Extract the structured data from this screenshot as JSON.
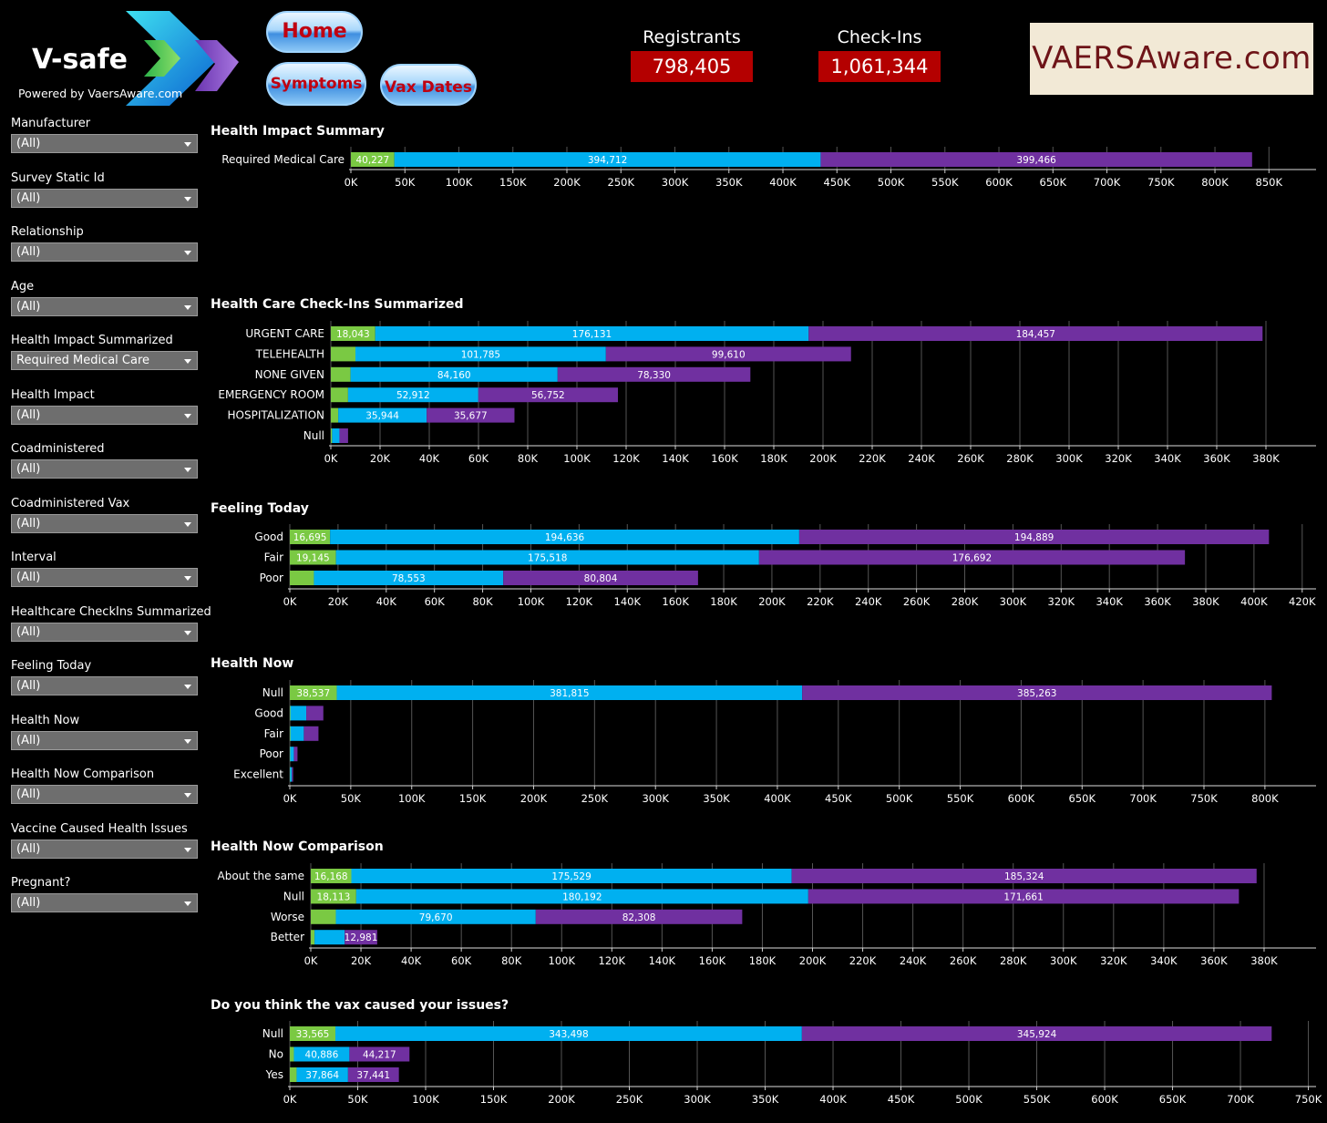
{
  "header": {
    "logo_title": "V-safe",
    "logo_subtitle": "Powered by VaersAware.com",
    "nav": {
      "home": "Home",
      "symptoms": "Symptoms",
      "vax_dates": "Vax Dates"
    },
    "kpis": [
      {
        "label": "Registrants",
        "value": "798,405"
      },
      {
        "label": "Check-Ins",
        "value": "1,061,344"
      }
    ],
    "brand": "VAERSAware.com"
  },
  "filters": [
    {
      "label": "Manufacturer",
      "value": "(All)"
    },
    {
      "label": "Survey Static Id",
      "value": "(All)"
    },
    {
      "label": "Relationship",
      "value": "(All)"
    },
    {
      "label": "Age",
      "value": "(All)"
    },
    {
      "label": "Health Impact Summarized",
      "value": "Required Medical Care"
    },
    {
      "label": "Health Impact",
      "value": "(All)"
    },
    {
      "label": "Coadministered",
      "value": "(All)"
    },
    {
      "label": "Coadministered Vax",
      "value": "(All)"
    },
    {
      "label": "Interval",
      "value": "(All)"
    },
    {
      "label": "Healthcare CheckIns Summarized",
      "value": "(All)"
    },
    {
      "label": "Feeling Today",
      "value": "(All)"
    },
    {
      "label": "Health Now",
      "value": "(All)"
    },
    {
      "label": "Health Now Comparison",
      "value": "(All)"
    },
    {
      "label": "Vaccine Caused Health Issues",
      "value": "(All)"
    },
    {
      "label": "Pregnant?",
      "value": "(All)"
    }
  ],
  "colors": {
    "green": "#7ac943",
    "blue": "#00b0f0",
    "purple": "#7030a0"
  },
  "chart_data": [
    {
      "type": "bar",
      "title": "Health Impact Summary",
      "categories": [
        "Required Medical Care"
      ],
      "series": [
        {
          "values": [
            40227
          ],
          "labels": [
            "40,227"
          ]
        },
        {
          "values": [
            394712
          ],
          "labels": [
            "394,712"
          ]
        },
        {
          "values": [
            399466
          ],
          "labels": [
            "399,466"
          ]
        }
      ],
      "xlim": [
        0,
        870000
      ],
      "ticks": [
        0,
        50000,
        100000,
        150000,
        200000,
        250000,
        300000,
        350000,
        400000,
        450000,
        500000,
        550000,
        600000,
        650000,
        700000,
        750000,
        800000,
        850000
      ],
      "tick_labels": [
        "0K",
        "50K",
        "100K",
        "150K",
        "200K",
        "250K",
        "300K",
        "350K",
        "400K",
        "450K",
        "500K",
        "550K",
        "600K",
        "650K",
        "700K",
        "750K",
        "800K",
        "850K"
      ]
    },
    {
      "type": "bar",
      "title": "Health Care Check-Ins Summarized",
      "categories": [
        "URGENT CARE",
        "TELEHEALTH",
        "NONE GIVEN",
        "EMERGENCY ROOM",
        "HOSPITALIZATION",
        "Null"
      ],
      "series": [
        {
          "values": [
            18043,
            10000,
            8000,
            7000,
            3000,
            500
          ],
          "labels": [
            "18,043",
            "",
            "",
            "",
            "",
            ""
          ]
        },
        {
          "values": [
            176131,
            101785,
            84160,
            52912,
            35944,
            3000
          ],
          "labels": [
            "176,131",
            "101,785",
            "84,160",
            "52,912",
            "35,944",
            ""
          ]
        },
        {
          "values": [
            184457,
            99610,
            78330,
            56752,
            35677,
            3500
          ],
          "labels": [
            "184,457",
            "99,610",
            "78,330",
            "56,752",
            "35,677",
            ""
          ]
        }
      ],
      "xlim": [
        0,
        390000
      ],
      "ticks": [
        0,
        20000,
        40000,
        60000,
        80000,
        100000,
        120000,
        140000,
        160000,
        180000,
        200000,
        220000,
        240000,
        260000,
        280000,
        300000,
        320000,
        340000,
        360000,
        380000
      ],
      "tick_labels": [
        "0K",
        "20K",
        "40K",
        "60K",
        "80K",
        "100K",
        "120K",
        "140K",
        "160K",
        "180K",
        "200K",
        "220K",
        "240K",
        "260K",
        "280K",
        "300K",
        "320K",
        "340K",
        "360K",
        "380K"
      ]
    },
    {
      "type": "bar",
      "title": "Feeling Today",
      "categories": [
        "Good",
        "Fair",
        "Poor"
      ],
      "series": [
        {
          "values": [
            16695,
            19145,
            10000
          ],
          "labels": [
            "16,695",
            "19,145",
            ""
          ]
        },
        {
          "values": [
            194636,
            175518,
            78553
          ],
          "labels": [
            "194,636",
            "175,518",
            "78,553"
          ]
        },
        {
          "values": [
            194889,
            176692,
            80804
          ],
          "labels": [
            "194,889",
            "176,692",
            "80,804"
          ]
        }
      ],
      "xlim": [
        0,
        425000
      ],
      "ticks": [
        0,
        20000,
        40000,
        60000,
        80000,
        100000,
        120000,
        140000,
        160000,
        180000,
        200000,
        220000,
        240000,
        260000,
        280000,
        300000,
        320000,
        340000,
        360000,
        380000,
        400000,
        420000
      ],
      "tick_labels": [
        "0K",
        "20K",
        "40K",
        "60K",
        "80K",
        "100K",
        "120K",
        "140K",
        "160K",
        "180K",
        "200K",
        "220K",
        "240K",
        "260K",
        "280K",
        "300K",
        "320K",
        "340K",
        "360K",
        "380K",
        "400K",
        "420K"
      ]
    },
    {
      "type": "bar",
      "title": "Health Now",
      "categories": [
        "Null",
        "Good",
        "Fair",
        "Poor",
        "Excellent"
      ],
      "series": [
        {
          "values": [
            38537,
            500,
            500,
            300,
            200
          ],
          "labels": [
            "38,537",
            "",
            "",
            "",
            ""
          ]
        },
        {
          "values": [
            381815,
            13000,
            11000,
            3000,
            1500
          ],
          "labels": [
            "381,815",
            "",
            "",
            "",
            ""
          ]
        },
        {
          "values": [
            385263,
            14000,
            12000,
            3000,
            1000
          ],
          "labels": [
            "385,263",
            "",
            "",
            "",
            ""
          ]
        }
      ],
      "xlim": [
        0,
        830000
      ],
      "ticks": [
        0,
        50000,
        100000,
        150000,
        200000,
        250000,
        300000,
        350000,
        400000,
        450000,
        500000,
        550000,
        600000,
        650000,
        700000,
        750000,
        800000
      ],
      "tick_labels": [
        "0K",
        "50K",
        "100K",
        "150K",
        "200K",
        "250K",
        "300K",
        "350K",
        "400K",
        "450K",
        "500K",
        "550K",
        "600K",
        "650K",
        "700K",
        "750K",
        "800K"
      ]
    },
    {
      "type": "bar",
      "title": "Health Now Comparison",
      "categories": [
        "About the same",
        "Null",
        "Worse",
        "Better"
      ],
      "series": [
        {
          "values": [
            16168,
            18113,
            10000,
            1500
          ],
          "labels": [
            "16,168",
            "18,113",
            "",
            ""
          ]
        },
        {
          "values": [
            175529,
            180192,
            79670,
            12000
          ],
          "labels": [
            "175,529",
            "180,192",
            "79,670",
            ""
          ]
        },
        {
          "values": [
            185324,
            171661,
            82308,
            12981
          ],
          "labels": [
            "185,324",
            "171,661",
            "82,308",
            "12,981"
          ]
        }
      ],
      "xlim": [
        0,
        392000
      ],
      "ticks": [
        0,
        20000,
        40000,
        60000,
        80000,
        100000,
        120000,
        140000,
        160000,
        180000,
        200000,
        220000,
        240000,
        260000,
        280000,
        300000,
        320000,
        340000,
        360000,
        380000
      ],
      "tick_labels": [
        "0K",
        "20K",
        "40K",
        "60K",
        "80K",
        "100K",
        "120K",
        "140K",
        "160K",
        "180K",
        "200K",
        "220K",
        "240K",
        "260K",
        "280K",
        "300K",
        "320K",
        "340K",
        "360K",
        "380K"
      ]
    },
    {
      "type": "bar",
      "title": "Do you think the vax caused your issues?",
      "categories": [
        "Null",
        "No",
        "Yes"
      ],
      "series": [
        {
          "values": [
            33565,
            3000,
            5000
          ],
          "labels": [
            "33,565",
            "",
            ""
          ]
        },
        {
          "values": [
            343498,
            40886,
            37864
          ],
          "labels": [
            "343,498",
            "40,886",
            "37,864"
          ]
        },
        {
          "values": [
            345924,
            44217,
            37441
          ],
          "labels": [
            "345,924",
            "44,217",
            "37,441"
          ]
        }
      ],
      "xlim": [
        0,
        755000
      ],
      "ticks": [
        0,
        50000,
        100000,
        150000,
        200000,
        250000,
        300000,
        350000,
        400000,
        450000,
        500000,
        550000,
        600000,
        650000,
        700000,
        750000
      ],
      "tick_labels": [
        "0K",
        "50K",
        "100K",
        "150K",
        "200K",
        "250K",
        "300K",
        "350K",
        "400K",
        "450K",
        "500K",
        "550K",
        "600K",
        "650K",
        "700K",
        "750K"
      ]
    }
  ]
}
